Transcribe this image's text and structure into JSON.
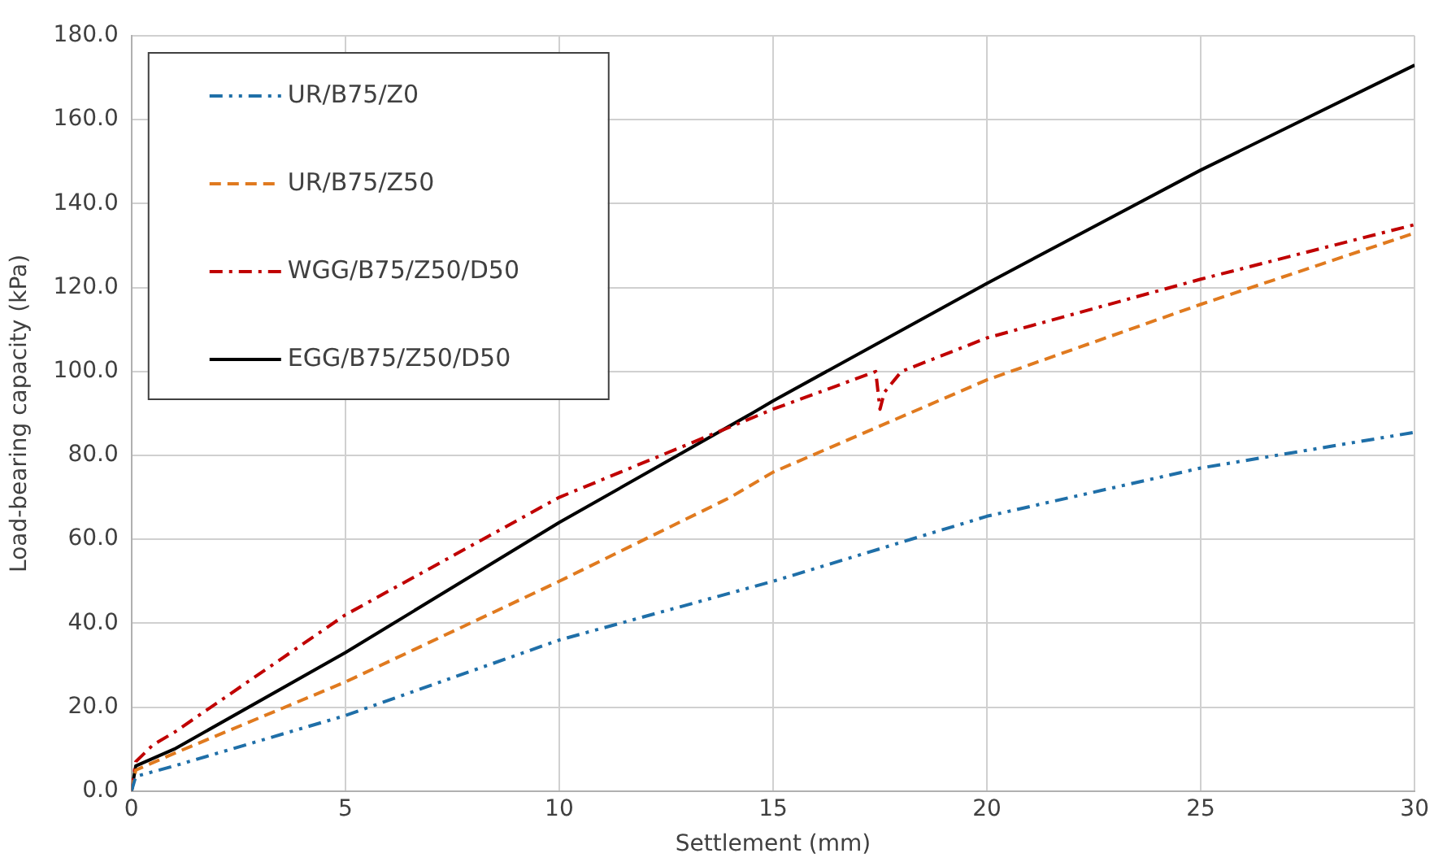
{
  "chart_data": {
    "type": "line",
    "xlabel": "Settlement (mm)",
    "ylabel": "Load-bearing capacity (kPa)",
    "xlim": [
      0,
      30
    ],
    "xticks": [
      0,
      5,
      10,
      15,
      20,
      25,
      30
    ],
    "ylim": [
      0,
      180
    ],
    "yticks": [
      {
        "value": 0,
        "label": "0.0"
      },
      {
        "value": 20,
        "label": "20.0"
      },
      {
        "value": 40,
        "label": "40.0"
      },
      {
        "value": 60,
        "label": "60.0"
      },
      {
        "value": 80,
        "label": "80.0"
      },
      {
        "value": 100,
        "label": "100.0"
      },
      {
        "value": 120,
        "label": "120.0"
      },
      {
        "value": 140,
        "label": "140.0"
      },
      {
        "value": 160,
        "label": "160.0"
      },
      {
        "value": 180,
        "label": "180.0"
      }
    ],
    "grid": true,
    "legend": "top left",
    "marker": "none",
    "series": [
      {
        "name": "UR/B75/Z0",
        "color": "#1f6fa8",
        "line_style": "dashdotdot",
        "x": [
          0,
          0.1,
          1,
          5,
          10,
          15,
          20,
          25,
          30
        ],
        "values": [
          0,
          3.5,
          6,
          18,
          36,
          50,
          65.5,
          77,
          85.5
        ]
      },
      {
        "name": "UR/B75/Z50",
        "color": "#e07a1f",
        "line_style": "dashed",
        "x": [
          0,
          0.1,
          1,
          5,
          10,
          14,
          15,
          20,
          25,
          30
        ],
        "values": [
          0,
          5,
          9,
          26,
          50,
          70,
          76,
          98,
          116,
          133
        ]
      },
      {
        "name": "WGG/B75/Z50/D50",
        "color": "#c00000",
        "line_style": "dashdot",
        "x": [
          0,
          0.1,
          0.5,
          1,
          5,
          10,
          15,
          17.4,
          17.5,
          17.6,
          18,
          20,
          25,
          30
        ],
        "values": [
          0,
          7,
          11,
          14,
          42,
          70,
          91,
          100,
          91,
          95,
          100,
          108,
          122,
          135
        ]
      },
      {
        "name": "EGG/B75/Z50/D50",
        "color": "#000000",
        "line_style": "solid",
        "x": [
          0,
          0.1,
          1,
          5,
          10,
          14.5,
          15,
          20,
          25,
          30
        ],
        "values": [
          0,
          6,
          10,
          33,
          64,
          90,
          93,
          121,
          148,
          173
        ]
      }
    ]
  }
}
